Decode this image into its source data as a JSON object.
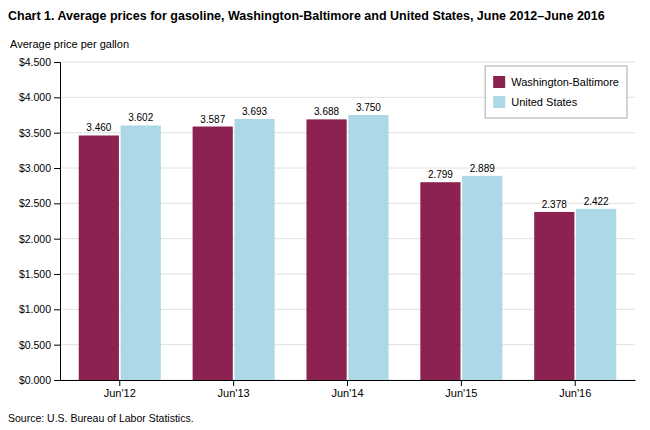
{
  "chart_data": {
    "type": "bar",
    "title": "Chart 1. Average prices for gasoline, Washington-Baltimore and United States, June 2012–June 2016",
    "ylabel": "Average price per gallon",
    "annotations": [
      "Source: U.S. Bureau of Labor Statistics."
    ],
    "categories": [
      "Jun'12",
      "Jun'13",
      "Jun'14",
      "Jun'15",
      "Jun'16"
    ],
    "series": [
      {
        "name": "Washington-Baltimore",
        "color": "#8B2252",
        "values": [
          3.46,
          3.587,
          3.688,
          2.799,
          2.378
        ],
        "value_labels": [
          "3.460",
          "3.587",
          "3.688",
          "2.799",
          "2.378"
        ]
      },
      {
        "name": "United States",
        "color": "#ADD8E6",
        "values": [
          3.602,
          3.693,
          3.75,
          2.889,
          2.422
        ],
        "value_labels": [
          "3.602",
          "3.693",
          "3.750",
          "2.889",
          "2.422"
        ]
      }
    ],
    "ylim": [
      0,
      4.5
    ],
    "yticks": [
      {
        "value": 0.0,
        "label": "$0.000"
      },
      {
        "value": 0.5,
        "label": "$0.500"
      },
      {
        "value": 1.0,
        "label": "$1.000"
      },
      {
        "value": 1.5,
        "label": "$1.500"
      },
      {
        "value": 2.0,
        "label": "$2.000"
      },
      {
        "value": 2.5,
        "label": "$2.500"
      },
      {
        "value": 3.0,
        "label": "$3.000"
      },
      {
        "value": 3.5,
        "label": "$3.500"
      },
      {
        "value": 4.0,
        "label": "$4.000"
      },
      {
        "value": 4.5,
        "label": "$4.500"
      }
    ],
    "grid": true,
    "legend": "upper right",
    "data_labels": true
  }
}
